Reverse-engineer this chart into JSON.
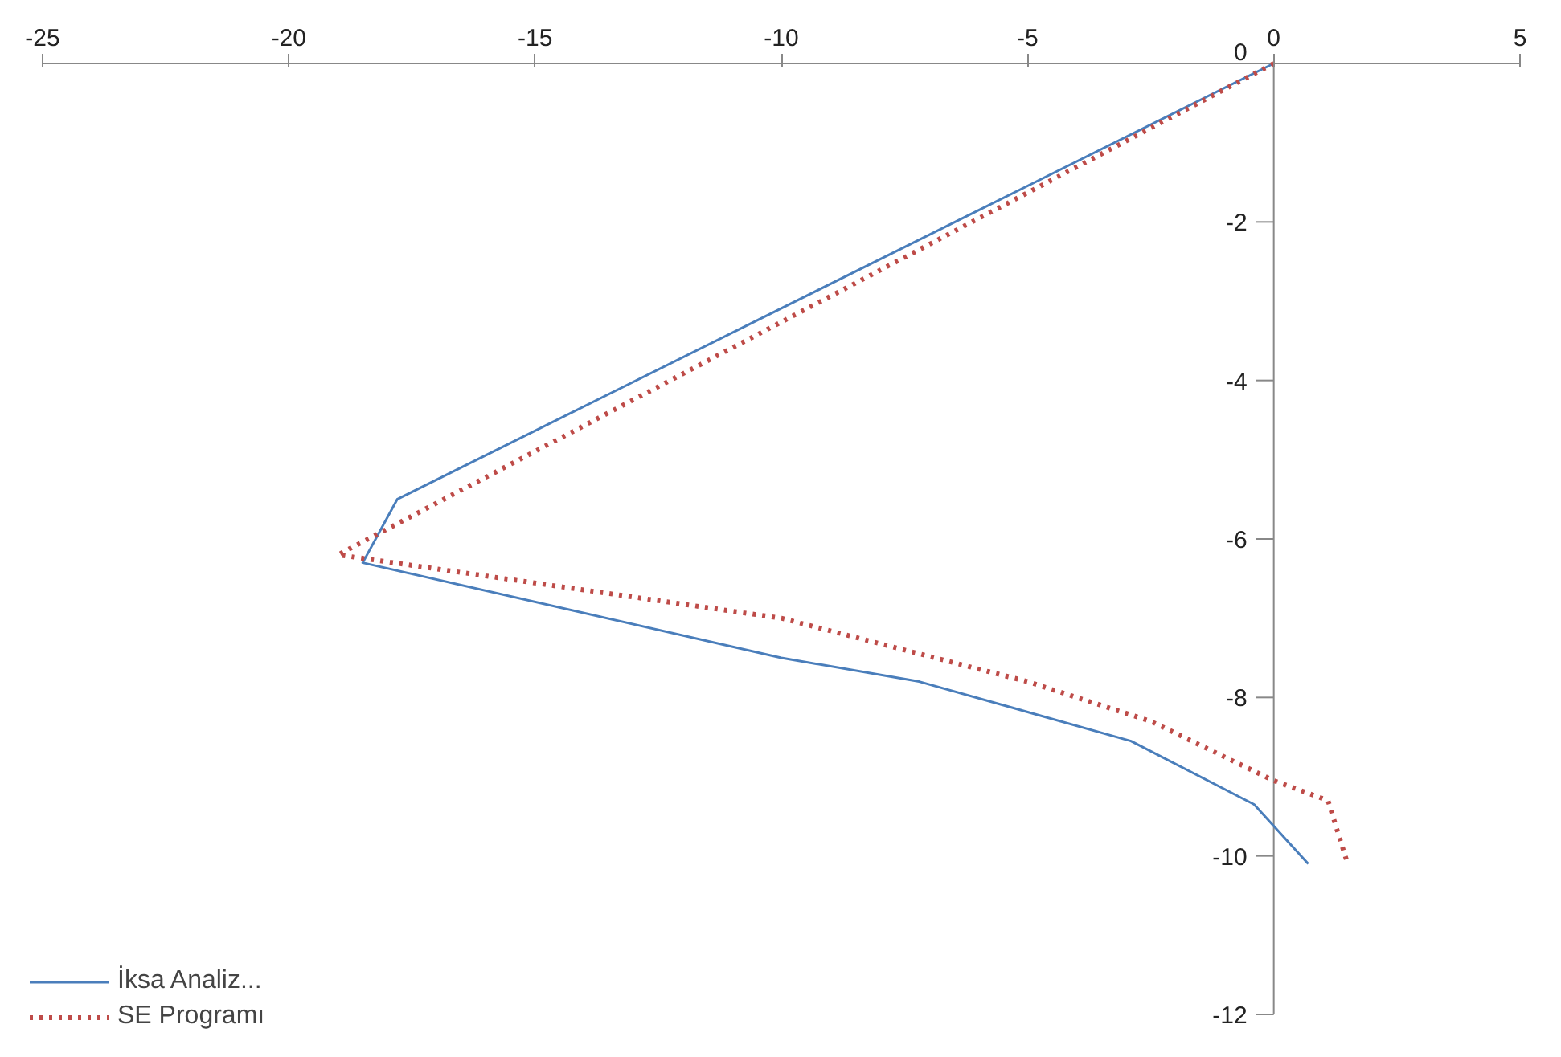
{
  "chart_data": {
    "type": "line",
    "series": [
      {
        "name": "İksa Analiz...",
        "color": "#4a7ebb",
        "line_style": "solid",
        "x": [
          0,
          -17.8,
          -18.5,
          -10,
          -7.2,
          -2.9,
          -0.4,
          0.7
        ],
        "values": [
          0,
          -5.5,
          -6.3,
          -7.5,
          -7.8,
          -8.55,
          -9.35,
          -10.1
        ]
      },
      {
        "name": "SE Programı",
        "color": "#be4b48",
        "line_style": "dotted",
        "x": [
          0,
          -19,
          -10,
          -5,
          -2.5,
          0,
          1.1,
          1.5
        ],
        "values": [
          0,
          -6.2,
          -7.0,
          -7.8,
          -8.3,
          -9.05,
          -9.3,
          -10.1
        ]
      }
    ],
    "xlim": [
      -25,
      5
    ],
    "ylim": [
      -12,
      0
    ],
    "xticks": [
      -25,
      -20,
      -15,
      -10,
      -5,
      0,
      5
    ],
    "yticks": [
      -12,
      -10,
      -8,
      -6,
      -4,
      -2,
      0
    ],
    "grid": false,
    "legend": "bottom left",
    "marker": "none"
  }
}
